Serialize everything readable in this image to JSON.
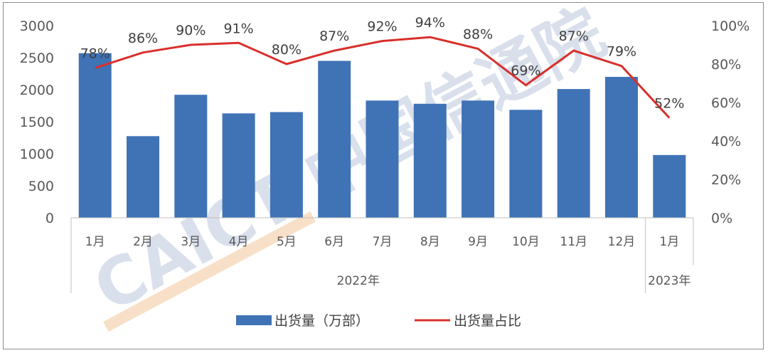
{
  "chart_data": {
    "type": "bar",
    "categories": [
      "1月",
      "2月",
      "3月",
      "4月",
      "5月",
      "6月",
      "7月",
      "8月",
      "9月",
      "10月",
      "11月",
      "12月",
      "1月"
    ],
    "groups": [
      {
        "label": "2022年",
        "count": 12
      },
      {
        "label": "2023年",
        "count": 1
      }
    ],
    "series": [
      {
        "name": "出货量（万部）",
        "type": "bar",
        "axis": "left",
        "color": "#3f73b6",
        "values": [
          2570,
          1275,
          1920,
          1630,
          1650,
          2450,
          1830,
          1780,
          1830,
          1685,
          2010,
          2200,
          980
        ]
      },
      {
        "name": "出货量占比",
        "type": "line",
        "axis": "right",
        "color": "#d9302c",
        "values": [
          78,
          86,
          90,
          91,
          80,
          87,
          92,
          94,
          88,
          69,
          87,
          79,
          52
        ],
        "labels": [
          "78%",
          "86%",
          "90%",
          "91%",
          "80%",
          "87%",
          "92%",
          "94%",
          "88%",
          "69%",
          "87%",
          "79%",
          "52%"
        ]
      }
    ],
    "left_axis": {
      "min": 0,
      "max": 3000,
      "ticks": [
        "0",
        "500",
        "1000",
        "1500",
        "2000",
        "2500",
        "3000"
      ]
    },
    "right_axis": {
      "min": 0,
      "max": 100,
      "ticks": [
        "0%",
        "20%",
        "40%",
        "60%",
        "80%",
        "100%"
      ]
    },
    "legend_position": "bottom",
    "grid": false
  },
  "watermark": {
    "text": "CAICT 中国信通院"
  }
}
